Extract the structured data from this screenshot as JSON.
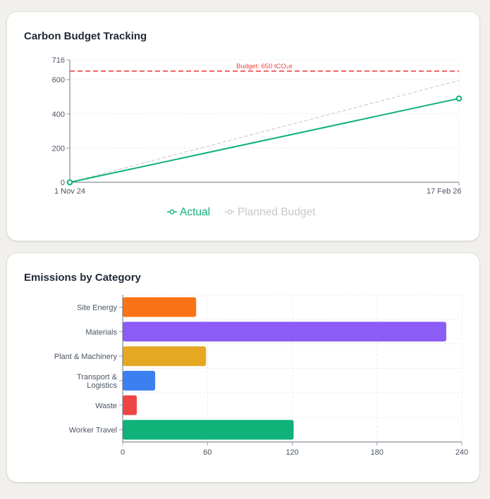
{
  "card1": {
    "title": "Carbon Budget Tracking"
  },
  "card2": {
    "title": "Emissions by Category"
  },
  "chart_data": [
    {
      "type": "line",
      "title": "Carbon Budget Tracking",
      "x": [
        "1 Nov 24",
        "17 Feb 26"
      ],
      "series": [
        {
          "name": "Actual",
          "values": [
            0,
            490
          ],
          "color": "#10b27a",
          "style": "solid",
          "markers": true
        },
        {
          "name": "Planned Budget",
          "values": [
            0,
            595
          ],
          "color": "#c4c4c4",
          "style": "dashed",
          "markers": false
        }
      ],
      "reference_line": {
        "value": 650,
        "label": "Budget: 650 tCO₂e",
        "color": "#ef4444"
      },
      "y_ticks": [
        0,
        200,
        400,
        600,
        716
      ],
      "ylim": [
        0,
        716
      ],
      "grid": true,
      "legend": "bottom",
      "xlabel": "",
      "ylabel": ""
    },
    {
      "type": "bar",
      "orientation": "horizontal",
      "title": "Emissions by Category",
      "categories": [
        "Site Energy",
        "Materials",
        "Plant & Machinery",
        "Transport & Logistics",
        "Waste",
        "Worker Travel"
      ],
      "category_lines": [
        [
          "Site Energy"
        ],
        [
          "Materials"
        ],
        [
          "Plant & Machinery"
        ],
        [
          "Transport &",
          "Logistics"
        ],
        [
          "Waste"
        ],
        [
          "Worker Travel"
        ]
      ],
      "values": [
        52,
        229,
        59,
        23,
        10,
        121
      ],
      "colors": [
        "#f97316",
        "#8b5cf6",
        "#e5a823",
        "#3b7ff0",
        "#ef4444",
        "#10b27a"
      ],
      "x_ticks": [
        0,
        60,
        120,
        180,
        240
      ],
      "xlim": [
        0,
        240
      ],
      "grid": true,
      "xlabel": "",
      "ylabel": ""
    }
  ]
}
